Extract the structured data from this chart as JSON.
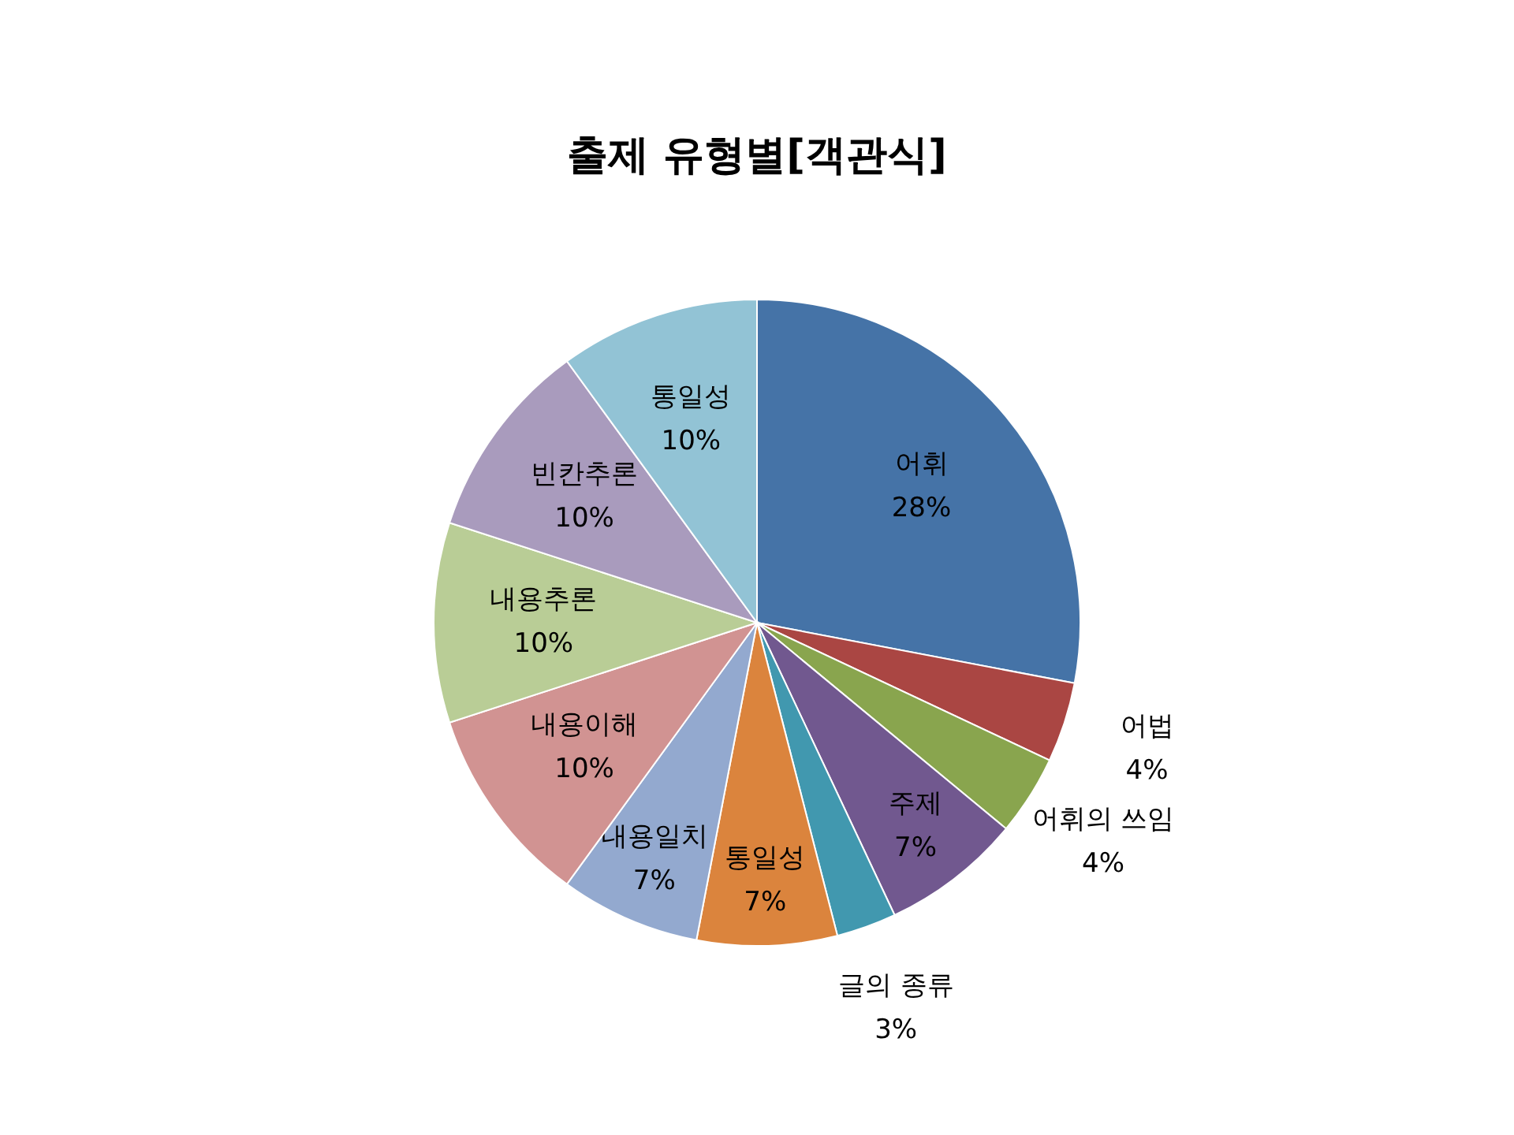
{
  "chart_data": {
    "type": "pie",
    "title": "출제 유형별[객관식]",
    "categories": [
      "어휘",
      "어법",
      "어휘의 쓰임",
      "주제",
      "글의 종류",
      "통일성",
      "내용일치",
      "내용이해",
      "내용추론",
      "빈칸추론",
      "통일성"
    ],
    "values": [
      28,
      4,
      4,
      7,
      3,
      7,
      7,
      10,
      10,
      10,
      10
    ],
    "colors": [
      "#4573a7",
      "#aa4643",
      "#89a54e",
      "#71588f",
      "#4198af",
      "#db843d",
      "#93a9cf",
      "#d19392",
      "#b9cd96",
      "#a99bbd",
      "#92c3d5"
    ],
    "value_labels": [
      "28%",
      "4%",
      "4%",
      "7%",
      "3%",
      "7%",
      "7%",
      "10%",
      "10%",
      "10%",
      "10%"
    ]
  }
}
